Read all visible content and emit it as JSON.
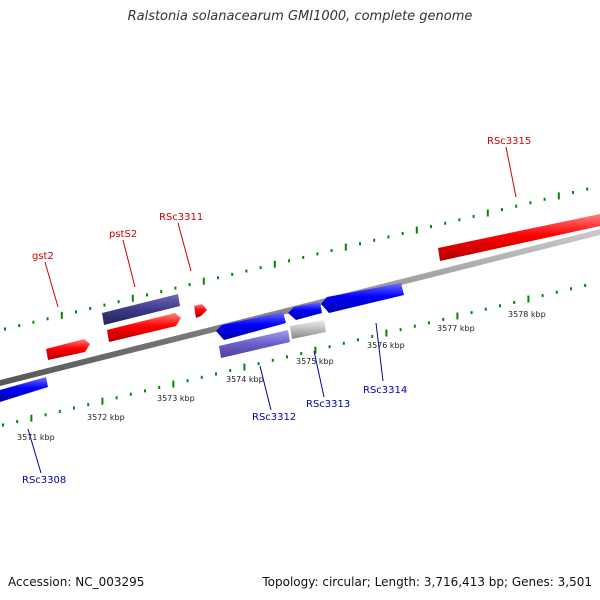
{
  "title": "Ralstonia solanacearum GMI1000, complete genome",
  "footer": {
    "accession": "Accession: NC_003295",
    "summary": "Topology: circular; Length: 3,716,413 bp; Genes: 3,501"
  },
  "colors": {
    "forward_strand": "#ff0000",
    "reverse_strand": "#0000ff",
    "forward_label": "#cc0000",
    "reverse_label": "#0000aa",
    "tick": "#008800",
    "backbone": "#888888",
    "dark_purple_gene": "#3c3a8a",
    "light_purple_gene": "#6a5ec8",
    "grey_gene": "#bbbbbb"
  },
  "forward_labels": [
    "gst2",
    "pstS2",
    "RSc3311",
    "RSc3315"
  ],
  "reverse_labels": [
    "RSc3308",
    "RSc3312",
    "RSc3313",
    "RSc3314"
  ],
  "kbp_labels": [
    "3571 kbp",
    "3572 kbp",
    "3573 kbp",
    "3574 kbp",
    "3575 kbp",
    "3576 kbp",
    "3577 kbp",
    "3578 kbp"
  ]
}
